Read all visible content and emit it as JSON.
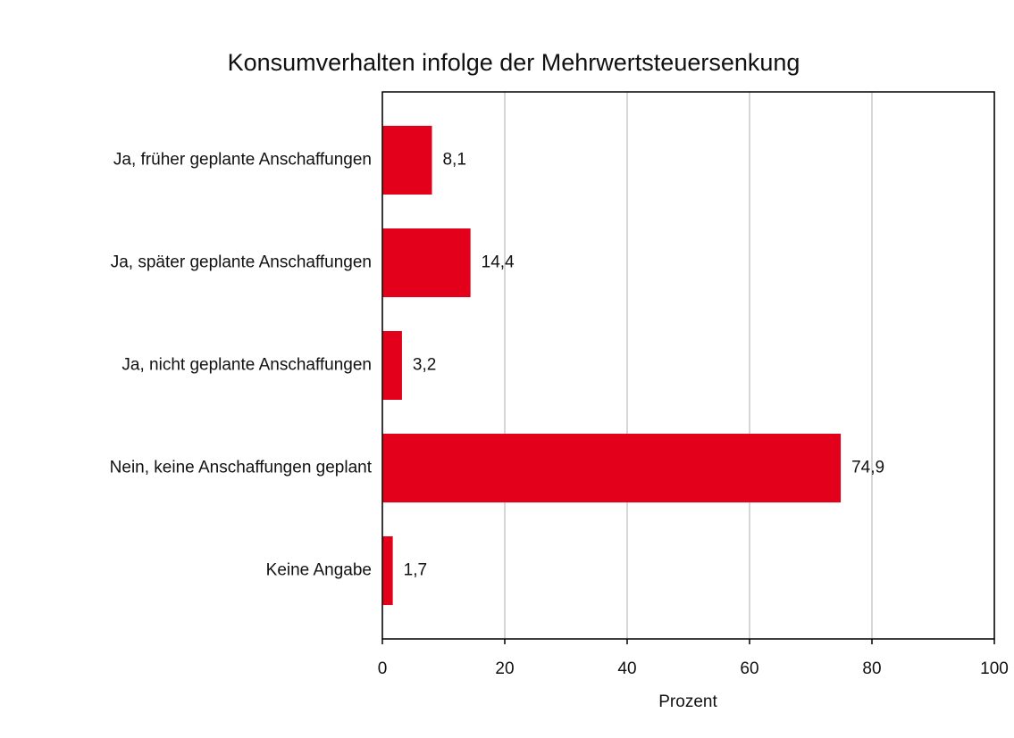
{
  "chart_data": {
    "type": "bar",
    "orientation": "horizontal",
    "title": "Konsumverhalten infolge der Mehrwertsteuersenkung",
    "x_label": "Prozent",
    "categories": [
      "Ja, früher geplante Anschaffungen",
      "Ja, später geplante Anschaffungen",
      "Ja, nicht geplante Anschaffungen",
      "Nein, keine Anschaffungen geplant",
      "Keine Angabe"
    ],
    "values": [
      8.1,
      14.4,
      3.2,
      74.9,
      1.7
    ],
    "value_labels": [
      "8,1",
      "14,4",
      "3,2",
      "74,9",
      "1,7"
    ],
    "color": "#e2001a",
    "xlim": [
      0,
      100
    ],
    "xticks": [
      0,
      20,
      40,
      60,
      80,
      100
    ],
    "grid": true
  }
}
